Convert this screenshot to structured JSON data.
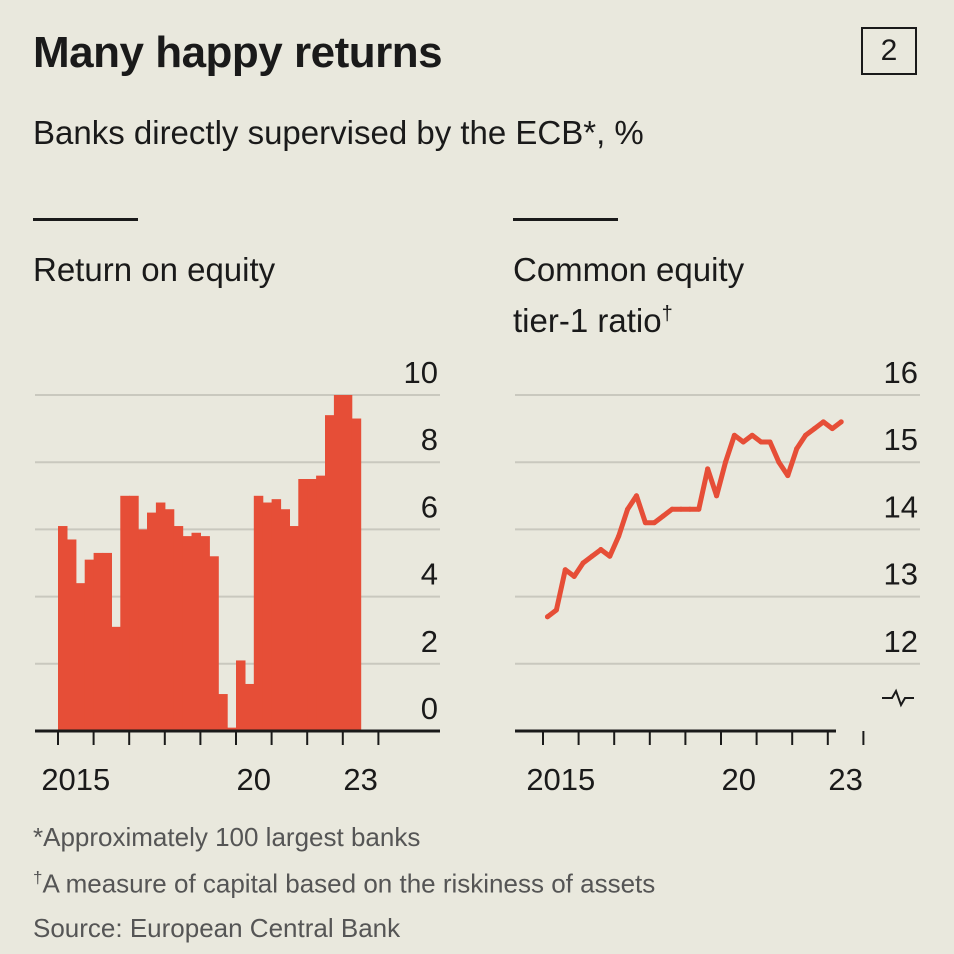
{
  "title": "Many happy returns",
  "badge": "2",
  "subtitle": "Banks directly supervised by the ECB*, %",
  "notes": {
    "n1": "*Approximately 100 largest banks",
    "n2_mark": "†",
    "n2_text": "A measure of capital based on the riskiness of assets",
    "source": "Source: European Central Bank"
  },
  "colors": {
    "accent": "#e64e37",
    "grid": "#c9c8be",
    "axis": "#1a1a1a",
    "background": "#e9e8dd"
  },
  "chart_data": [
    {
      "type": "bar",
      "title": "Return on equity",
      "frequency": "quarterly",
      "start_year": 2015,
      "x_tick_labels": [
        "2015",
        "20",
        "23"
      ],
      "ylim": [
        0,
        10
      ],
      "y_ticks": [
        0,
        2,
        4,
        6,
        8,
        10
      ],
      "grid": true,
      "values": [
        6.1,
        5.7,
        4.4,
        5.1,
        5.3,
        5.3,
        3.1,
        7.0,
        7.0,
        6.0,
        6.5,
        6.8,
        6.6,
        6.1,
        5.8,
        5.9,
        5.8,
        5.2,
        1.1,
        0.1,
        2.1,
        1.4,
        7.0,
        6.8,
        6.9,
        6.6,
        6.1,
        7.5,
        7.5,
        7.6,
        9.4,
        10.0,
        10.0,
        9.3
      ]
    },
    {
      "type": "line",
      "title": "Common equity",
      "title_line2": "tier-1 ratio",
      "title_mark": "†",
      "frequency": "quarterly",
      "start_year": 2015,
      "x_tick_labels": [
        "2015",
        "20",
        "23"
      ],
      "ylim": [
        11,
        16
      ],
      "y_ticks": [
        12,
        13,
        14,
        15,
        16
      ],
      "axis_break": true,
      "grid": true,
      "values": [
        12.7,
        12.8,
        13.4,
        13.3,
        13.5,
        13.6,
        13.7,
        13.6,
        13.9,
        14.3,
        14.5,
        14.1,
        14.1,
        14.2,
        14.3,
        14.3,
        14.3,
        14.3,
        14.9,
        14.5,
        15.0,
        15.4,
        15.3,
        15.4,
        15.3,
        15.3,
        15.0,
        14.8,
        15.2,
        15.4,
        15.5,
        15.6,
        15.5,
        15.6
      ]
    }
  ]
}
